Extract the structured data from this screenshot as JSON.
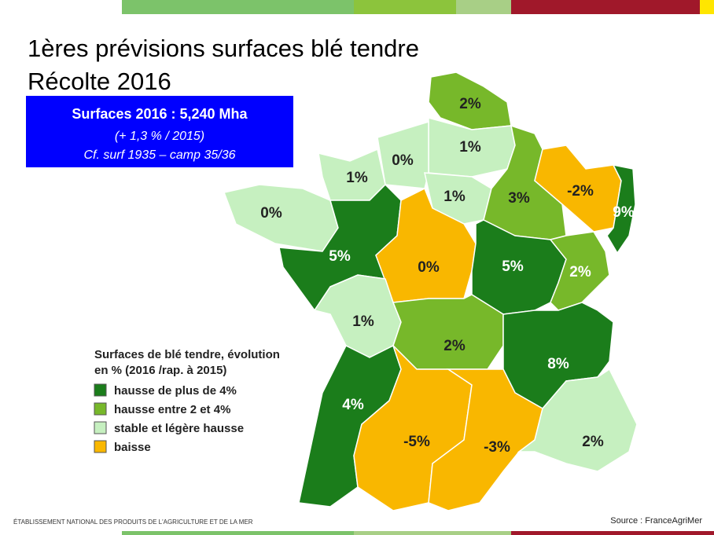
{
  "title": [
    "1ères prévisions surfaces blé tendre",
    "Récolte 2016"
  ],
  "info_box": {
    "headline": "Surfaces 2016 : 5,240 Mha",
    "lines": [
      "(+ 1,3 % / 2015)",
      "Cf. surf 1935 – camp 35/36"
    ],
    "color": "#0000ff"
  },
  "regions": [
    {
      "label": "2%",
      "color": "#77b82a"
    },
    {
      "label": "1%",
      "color": "#c6f0c0"
    },
    {
      "label": "0%",
      "color": "#c6f0c0"
    },
    {
      "label": "1%",
      "color": "#c6f0c0"
    },
    {
      "label": "0%",
      "color": "#c6f0c0"
    },
    {
      "label": "1%",
      "color": "#c6f0c0"
    },
    {
      "label": "3%",
      "color": "#77b82a"
    },
    {
      "label": "-2%",
      "color": "#f9b700"
    },
    {
      "label": "9%",
      "color": "#1b7d1b"
    },
    {
      "label": "5%",
      "color": "#1b7d1b"
    },
    {
      "label": "0%",
      "color": "#f9b700"
    },
    {
      "label": "5%",
      "color": "#1b7d1b"
    },
    {
      "label": "2%",
      "color": "#77b82a"
    },
    {
      "label": "1%",
      "color": "#c6f0c0"
    },
    {
      "label": "2%",
      "color": "#77b82a"
    },
    {
      "label": "8%",
      "color": "#1b7d1b"
    },
    {
      "label": "4%",
      "color": "#1b7d1b"
    },
    {
      "label": "-5%",
      "color": "#f9b700"
    },
    {
      "label": "-3%",
      "color": "#f9b700"
    },
    {
      "label": "2%",
      "color": "#c6f0c0"
    }
  ],
  "legend": {
    "title": [
      "Surfaces de blé tendre, évolution",
      "en % (2016 /rap. à 2015)"
    ],
    "items": [
      {
        "label": "hausse de plus de 4%",
        "color": "#1b7d1b"
      },
      {
        "label": "hausse entre 2 et 4%",
        "color": "#77b82a"
      },
      {
        "label": "stable et légère hausse",
        "color": "#c6f0c0"
      },
      {
        "label": "baisse",
        "color": "#f9b700"
      }
    ]
  },
  "footer": {
    "left": "ÉTABLISSEMENT NATIONAL DES PRODUITS DE L'AGRICULTURE ET DE LA MER",
    "right": "Source : FranceAgriMer"
  }
}
